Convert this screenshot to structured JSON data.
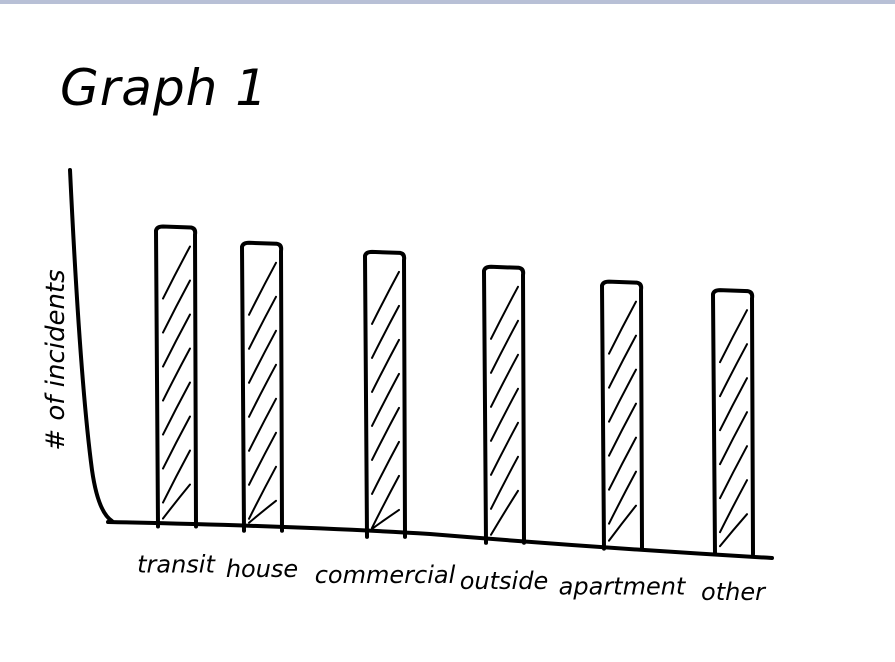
{
  "chart_data": {
    "type": "bar",
    "title": "Graph 1",
    "xlabel": "",
    "ylabel": "# of incidents",
    "categories": [
      "transit",
      "house",
      "commercial",
      "outside",
      "apartment",
      "other"
    ],
    "values": [
      100,
      96,
      95,
      92,
      89,
      88
    ],
    "ylim": [
      0,
      110
    ],
    "grid": false,
    "legend": "none",
    "bar_fill": "hatched",
    "colors": {
      "ink": "#000000",
      "background": "#ffffff",
      "top_rule": "#b8c0d6"
    }
  }
}
